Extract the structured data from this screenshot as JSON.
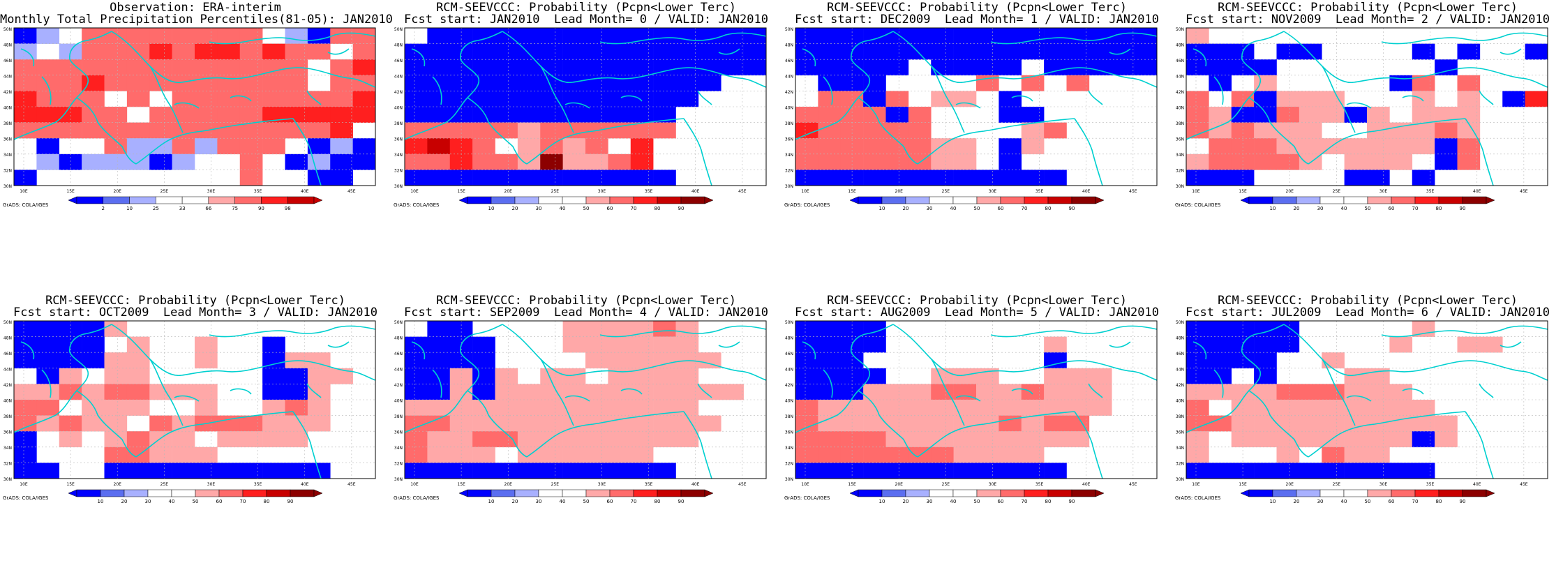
{
  "colors": {
    "deep_blue": "#0000ff",
    "light_blue": "#5b6ef0",
    "pale_blue": "#a8b0ff",
    "white": "#ffffff",
    "pale_red": "#ffa8a8",
    "light_red": "#ff6b6b",
    "red": "#ff1f1f",
    "dark_red": "#c80000",
    "darkest_red": "#8c0000",
    "coast": "#00d0d0"
  },
  "lat_labels": [
    "50N",
    "48N",
    "46N",
    "44N",
    "42N",
    "40N",
    "38N",
    "36N",
    "34N",
    "32N",
    "30N"
  ],
  "lon_labels": [
    "10E",
    "15E",
    "20E",
    "25E",
    "30E",
    "35E",
    "40E",
    "45E"
  ],
  "credit": "GrADS: COLA/IGES",
  "panels": [
    {
      "title1": "Observation: ERA-interim",
      "title2": "Monthly Total Precipitation Percentiles(81-05): JAN2010",
      "colorbar": [
        "2",
        "10",
        "25",
        "33",
        "66",
        "75",
        "90",
        "98"
      ],
      "grid": [
        "BPWRRRRRRRRWPBRR",
        "PWPRRRSRSSRSRRWR",
        "RRRRRRRRRRRRRWRS",
        "RRRSRRRRRRRRRWRR",
        "SRRRWRWRRRRRRRRS",
        "SSSRRWRRRRRSSSSS",
        "RRRRRRRRRRRRRRSW",
        "WBWWRPPRPRRRWBPB",
        "WPBPPPBPWWRWBPBB",
        "BWWWWWWWWWRWWBBW"
      ]
    },
    {
      "title1": "RCM-SEEVCCC: Probability (Pcpn<Lower Terc)",
      "title2": "Fcst start: JAN2010  Lead Month= 0 / VALID: JAN2010",
      "colorbar": [
        "10",
        "20",
        "30",
        "40",
        "50",
        "60",
        "70",
        "80",
        "90"
      ],
      "grid": [
        "WBBBBBBBBBBBBBBB",
        "BBBBBBBBBBBBBBBB",
        "BBBBBBBBBBBBBBBB",
        "BBBBBBBBBBBBBBWW",
        "BBBBBBBBBBBBBWWW",
        "BBBBBBBBBBBBWWWW",
        "RRRRRPRRRRRRWWWW",
        "SDSRWPRPRWSWWWWW",
        "RRSRRPXPPRSWWWWW",
        "BBBBBBBBBBBBWWWW"
      ]
    },
    {
      "title1": "RCM-SEEVCCC: Probability (Pcpn<Lower Terc)",
      "title2": "Fcst start: DEC2009  Lead Month= 1 / VALID: JAN2010",
      "colorbar": [
        "10",
        "20",
        "30",
        "40",
        "50",
        "60",
        "70",
        "80",
        "90"
      ],
      "grid": [
        "BBBBBBBBBBBBBBBB",
        "BBBBBBBBBBBBBBBB",
        "BBBBBWBBBBWBBBBB",
        "WBBBWWWWRWRWRWWW",
        "WRRBRWPPWBWWWWWW",
        "RRRRBRWWWBBWWWWW",
        "SRRRRRWWWWPRWWWW",
        "RRRRRRPPWBPWWWWW",
        "RRRRRRPPWBWWWWWW",
        "BBBBBBBBBBBBWWWW"
      ]
    },
    {
      "title1": "RCM-SEEVCCC: Probability (Pcpn<Lower Terc)",
      "title2": "Fcst start: NOV2009  Lead Month= 2 / VALID: JAN2010",
      "colorbar": [
        "10",
        "20",
        "30",
        "40",
        "50",
        "60",
        "70",
        "80",
        "90"
      ],
      "grid": [
        "PWWWWWWWWWWWWWWW",
        "BBBWBBWWWWBWBWWB",
        "BBBBWWWWWWWBWWWW",
        "WBWPWWWWWBRWRWWW",
        "RWRBPPPWWWPWPWBS",
        "RPBBRPPBPWPPPWWW",
        "RPRPPPWWPPPRPWWW",
        "WRRRPPPPPPPBRWWW",
        "PRRRRPWPPPWBRWWW",
        "BBBWWWWBBWBWWWWW"
      ]
    },
    {
      "title1": "RCM-SEEVCCC: Probability (Pcpn<Lower Terc)",
      "title2": "Fcst start: OCT2009  Lead Month= 3 / VALID: JAN2010",
      "colorbar": [
        "10",
        "20",
        "30",
        "40",
        "50",
        "60",
        "70",
        "80",
        "90"
      ],
      "grid": [
        "BBBBPWWWWWWWWWWW",
        "BBBBWPWWPWWBWWWW",
        "BBBBPPWWPWWBPPWW",
        "WBPWPPWWWWWBBPPW",
        "PPRPRRPPPWWBBPWW",
        "RRWPPPWWPWWPRPWW",
        "RPRPPWRPRRRPPPWW",
        "BWPWPRPPWPPPPWWW",
        "BWWWRRPPPWWWWWWW",
        "BBWWBBBBBBBBBBWW"
      ]
    },
    {
      "title1": "RCM-SEEVCCC: Probability (Pcpn<Lower Terc)",
      "title2": "Fcst start: SEP2009  Lead Month= 4 / VALID: JAN2010",
      "colorbar": [
        "10",
        "20",
        "30",
        "40",
        "50",
        "60",
        "70",
        "80",
        "90"
      ],
      "grid": [
        "WBBWWWWPPPPRPWWW",
        "BBBBWWWPPPPPPWWW",
        "BBBBWWWWPPPPPPWW",
        "BBPBPWPPWPPPPWWW",
        "BBPBPPPPPPPPPPPW",
        "PPPPPPPPPPPPPWWW",
        "RRPPPPPPPPPPPPWW",
        "RPPRRPPPPPPPPWWW",
        "RPPPWPPPPPPWWWWW",
        "BBBBBBBBBBBBWWWW"
      ]
    },
    {
      "title1": "RCM-SEEVCCC: Probability (Pcpn<Lower Terc)",
      "title2": "Fcst start: AUG2009  Lead Month= 5 / VALID: JAN2010",
      "colorbar": [
        "10",
        "20",
        "30",
        "40",
        "50",
        "60",
        "70",
        "80",
        "90"
      ],
      "grid": [
        "BBBBWWWWWWWWWWWW",
        "BBBBWWWWWWWPWWWW",
        "BBBWWWWWWWWBWWWW",
        "BBBBWWPPPWWPPPWW",
        "BBBPPPRRPPRPPPWW",
        "RPPPPPPPPPPPPPWW",
        "RPPPPPPPPRPRRWWW",
        "RRRRPPPPPPPPPWWW",
        "RRRRRRRPPPPWWWWW",
        "BBBBBBBBBBBBWWWW"
      ]
    },
    {
      "title1": "RCM-SEEVCCC: Probability (Pcpn<Lower Terc)",
      "title2": "Fcst start: JUL2009  Lead Month= 6 / VALID: JAN2010",
      "colorbar": [
        "10",
        "20",
        "30",
        "40",
        "50",
        "60",
        "70",
        "80",
        "90"
      ],
      "grid": [
        "BBBBBWWWWWPWWWWW",
        "BBBBBWWWWPWWPPWW",
        "BBBBWWPWWWWWWWWW",
        "BBWBWWWPPWWWWWWW",
        "PPPPRRRPPPWWWWWW",
        "RWPPPPPPPPPWWWWW",
        "RRPPPPPPPPPPWWWW",
        "PWPPPPPPPPBPWWWW",
        "PWWWPWRPPWWWWWWW",
        "BBBBBBBBBBBWWWWW"
      ]
    }
  ]
}
